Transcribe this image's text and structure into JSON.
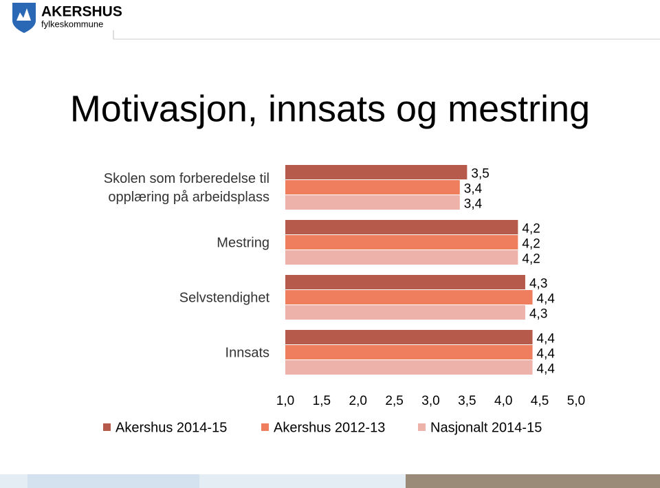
{
  "header": {
    "brand": "AKERSHUS",
    "sub": "fylkeskommune"
  },
  "chart_data": {
    "type": "barh",
    "title": "Motivasjon, innsats og mestring",
    "categories": [
      "Skolen som forberedelse til opplæring på arbeidsplass",
      "Mestring",
      "Selvstendighet",
      "Innsats"
    ],
    "series": [
      {
        "name": "Akershus 2014-15",
        "color": "#b65a4c",
        "values": [
          3.5,
          4.2,
          4.3,
          4.4
        ],
        "value_labels": [
          "3,5",
          "4,2",
          "4,3",
          "4,4"
        ]
      },
      {
        "name": "Akershus 2012-13",
        "color": "#ee7e5e",
        "values": [
          3.4,
          4.2,
          4.4,
          4.4
        ],
        "value_labels": [
          "3,4",
          "4,2",
          "4,4",
          "4,4"
        ]
      },
      {
        "name": "Nasjonalt 2014-15",
        "color": "#edb3aa",
        "values": [
          3.4,
          4.2,
          4.3,
          4.4
        ],
        "value_labels": [
          "3,4",
          "4,2",
          "4,3",
          "4,4"
        ]
      }
    ],
    "xlim": [
      1,
      5
    ],
    "xticks": [
      {
        "value": 1,
        "label": "1,0"
      },
      {
        "value": 1.5,
        "label": "1,5"
      },
      {
        "value": 2,
        "label": "2,0"
      },
      {
        "value": 2.5,
        "label": "2,5"
      },
      {
        "value": 3,
        "label": "3,0"
      },
      {
        "value": 3.5,
        "label": "3,5"
      },
      {
        "value": 4,
        "label": "4,0"
      },
      {
        "value": 4.5,
        "label": "4,5"
      },
      {
        "value": 5,
        "label": "5,0"
      }
    ],
    "legend": "bottom"
  }
}
